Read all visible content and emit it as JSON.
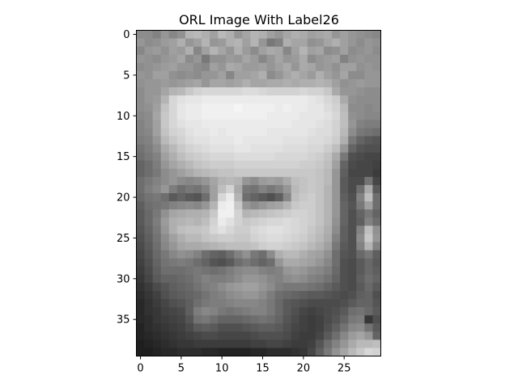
{
  "chart_data": {
    "type": "heatmap",
    "title": "ORL Image With Label26",
    "colormap": "gray",
    "grid": false,
    "x_axis": {
      "lim": [
        -0.5,
        29.5
      ],
      "ticks": [
        0,
        5,
        10,
        15,
        20,
        25
      ],
      "tick_labels": [
        "0",
        "5",
        "10",
        "15",
        "20",
        "25"
      ]
    },
    "y_axis": {
      "lim": [
        39.5,
        -0.5
      ],
      "inverted": true,
      "ticks": [
        0,
        5,
        10,
        15,
        20,
        25,
        30,
        35
      ],
      "tick_labels": [
        "0",
        "5",
        "10",
        "15",
        "20",
        "25",
        "30",
        "35"
      ]
    },
    "rows": 40,
    "cols": 30,
    "value_range": [
      0,
      255
    ],
    "pixels": [
      [
        140,
        140,
        130,
        150,
        135,
        145,
        180,
        185,
        175,
        160,
        185,
        175,
        150,
        165,
        180,
        175,
        160,
        150,
        165,
        175,
        170,
        160,
        165,
        170,
        150,
        160,
        150,
        145,
        140,
        135
      ],
      [
        150,
        140,
        145,
        155,
        160,
        175,
        150,
        160,
        180,
        150,
        155,
        175,
        180,
        160,
        180,
        150,
        120,
        130,
        175,
        165,
        165,
        145,
        150,
        165,
        175,
        160,
        150,
        140,
        150,
        145
      ],
      [
        135,
        150,
        155,
        145,
        160,
        155,
        175,
        135,
        160,
        180,
        165,
        150,
        175,
        155,
        140,
        160,
        170,
        165,
        135,
        160,
        180,
        160,
        165,
        140,
        145,
        160,
        140,
        145,
        150,
        140
      ],
      [
        150,
        145,
        140,
        150,
        155,
        165,
        140,
        150,
        120,
        145,
        145,
        155,
        150,
        165,
        155,
        135,
        150,
        165,
        150,
        155,
        170,
        140,
        150,
        155,
        160,
        130,
        145,
        150,
        145,
        145
      ],
      [
        140,
        145,
        150,
        155,
        160,
        150,
        150,
        140,
        135,
        160,
        150,
        170,
        165,
        155,
        155,
        160,
        150,
        160,
        170,
        150,
        170,
        165,
        150,
        155,
        145,
        160,
        160,
        145,
        150,
        145
      ],
      [
        150,
        145,
        160,
        160,
        145,
        140,
        145,
        140,
        150,
        150,
        160,
        135,
        160,
        160,
        165,
        175,
        140,
        150,
        165,
        175,
        165,
        155,
        175,
        160,
        150,
        165,
        140,
        140,
        150,
        150
      ],
      [
        145,
        150,
        150,
        155,
        150,
        155,
        160,
        165,
        150,
        165,
        165,
        160,
        165,
        175,
        165,
        165,
        170,
        170,
        175,
        170,
        175,
        175,
        180,
        175,
        160,
        145,
        150,
        155,
        150,
        150
      ],
      [
        140,
        150,
        150,
        165,
        180,
        185,
        200,
        210,
        215,
        215,
        215,
        215,
        215,
        220,
        220,
        215,
        210,
        210,
        210,
        210,
        215,
        210,
        210,
        200,
        170,
        150,
        150,
        145,
        140,
        140
      ],
      [
        140,
        150,
        155,
        180,
        215,
        225,
        230,
        230,
        235,
        235,
        235,
        235,
        235,
        235,
        235,
        235,
        235,
        235,
        235,
        235,
        235,
        230,
        225,
        215,
        205,
        170,
        145,
        140,
        140,
        140
      ],
      [
        140,
        145,
        160,
        195,
        215,
        230,
        235,
        235,
        240,
        240,
        240,
        240,
        245,
        240,
        240,
        240,
        240,
        235,
        240,
        235,
        235,
        230,
        230,
        220,
        210,
        185,
        140,
        140,
        135,
        140
      ],
      [
        135,
        140,
        165,
        200,
        215,
        230,
        235,
        235,
        240,
        240,
        240,
        240,
        240,
        240,
        240,
        240,
        235,
        235,
        235,
        235,
        230,
        230,
        230,
        225,
        215,
        190,
        145,
        140,
        135,
        135
      ],
      [
        130,
        140,
        160,
        200,
        215,
        225,
        230,
        230,
        235,
        235,
        235,
        235,
        235,
        235,
        235,
        235,
        235,
        235,
        235,
        230,
        230,
        230,
        225,
        220,
        210,
        190,
        150,
        130,
        125,
        125
      ],
      [
        130,
        135,
        160,
        195,
        210,
        215,
        225,
        230,
        230,
        235,
        230,
        235,
        235,
        235,
        235,
        235,
        230,
        230,
        230,
        230,
        230,
        225,
        220,
        220,
        210,
        185,
        140,
        120,
        115,
        110
      ],
      [
        125,
        130,
        150,
        185,
        200,
        210,
        220,
        225,
        225,
        230,
        230,
        230,
        235,
        230,
        230,
        230,
        230,
        230,
        225,
        225,
        225,
        220,
        220,
        215,
        205,
        175,
        120,
        100,
        90,
        85
      ],
      [
        115,
        125,
        140,
        170,
        185,
        200,
        210,
        215,
        220,
        225,
        225,
        225,
        230,
        230,
        225,
        225,
        225,
        225,
        220,
        220,
        220,
        215,
        215,
        205,
        190,
        150,
        100,
        85,
        80,
        80
      ],
      [
        110,
        120,
        130,
        160,
        175,
        190,
        200,
        205,
        210,
        215,
        215,
        215,
        220,
        220,
        220,
        220,
        220,
        215,
        215,
        215,
        215,
        210,
        205,
        195,
        170,
        120,
        80,
        75,
        70,
        70
      ],
      [
        100,
        110,
        125,
        150,
        165,
        175,
        185,
        195,
        200,
        205,
        205,
        205,
        210,
        210,
        210,
        210,
        210,
        210,
        210,
        210,
        205,
        205,
        200,
        190,
        160,
        100,
        75,
        70,
        70,
        65
      ],
      [
        100,
        110,
        120,
        140,
        150,
        160,
        170,
        180,
        185,
        190,
        195,
        195,
        200,
        200,
        200,
        200,
        200,
        200,
        200,
        200,
        200,
        200,
        195,
        185,
        150,
        95,
        70,
        70,
        70,
        60
      ],
      [
        110,
        120,
        130,
        140,
        150,
        140,
        135,
        140,
        150,
        165,
        180,
        185,
        180,
        150,
        140,
        155,
        160,
        155,
        170,
        190,
        195,
        200,
        195,
        185,
        150,
        90,
        75,
        75,
        115,
        70
      ],
      [
        110,
        125,
        135,
        150,
        125,
        110,
        120,
        115,
        130,
        160,
        190,
        210,
        170,
        120,
        115,
        130,
        120,
        130,
        150,
        185,
        195,
        200,
        195,
        180,
        150,
        90,
        75,
        110,
        170,
        90
      ],
      [
        105,
        115,
        120,
        110,
        90,
        100,
        90,
        85,
        110,
        160,
        215,
        235,
        180,
        110,
        100,
        90,
        80,
        95,
        135,
        190,
        200,
        205,
        195,
        180,
        150,
        95,
        80,
        130,
        190,
        110
      ],
      [
        95,
        110,
        115,
        120,
        130,
        135,
        140,
        135,
        150,
        180,
        235,
        240,
        200,
        150,
        140,
        150,
        160,
        165,
        180,
        200,
        205,
        205,
        195,
        180,
        150,
        100,
        85,
        120,
        160,
        110
      ],
      [
        90,
        105,
        120,
        145,
        165,
        170,
        175,
        175,
        180,
        200,
        240,
        240,
        210,
        180,
        185,
        190,
        195,
        200,
        205,
        210,
        210,
        205,
        195,
        180,
        150,
        100,
        80,
        100,
        120,
        100
      ],
      [
        90,
        105,
        125,
        155,
        175,
        180,
        185,
        180,
        190,
        210,
        235,
        225,
        210,
        200,
        205,
        210,
        215,
        215,
        220,
        215,
        210,
        205,
        195,
        180,
        145,
        100,
        80,
        95,
        130,
        110
      ],
      [
        85,
        100,
        120,
        150,
        175,
        190,
        195,
        195,
        200,
        215,
        225,
        215,
        205,
        205,
        215,
        220,
        225,
        225,
        220,
        215,
        210,
        200,
        190,
        175,
        140,
        95,
        80,
        130,
        190,
        145
      ],
      [
        80,
        95,
        115,
        140,
        160,
        175,
        185,
        185,
        195,
        200,
        205,
        205,
        200,
        200,
        210,
        215,
        220,
        220,
        215,
        210,
        205,
        195,
        185,
        170,
        130,
        95,
        80,
        140,
        200,
        150
      ],
      [
        75,
        90,
        110,
        135,
        150,
        165,
        170,
        170,
        175,
        180,
        185,
        190,
        190,
        190,
        195,
        205,
        210,
        210,
        205,
        200,
        195,
        185,
        175,
        160,
        120,
        90,
        80,
        130,
        180,
        130
      ],
      [
        70,
        85,
        105,
        120,
        135,
        145,
        140,
        130,
        110,
        100,
        95,
        110,
        130,
        145,
        120,
        110,
        140,
        175,
        185,
        185,
        175,
        165,
        160,
        145,
        110,
        85,
        80,
        105,
        120,
        95
      ],
      [
        65,
        80,
        100,
        115,
        120,
        125,
        120,
        110,
        100,
        85,
        80,
        90,
        110,
        120,
        110,
        100,
        110,
        150,
        170,
        170,
        165,
        160,
        150,
        135,
        110,
        80,
        75,
        90,
        105,
        90
      ],
      [
        60,
        75,
        95,
        110,
        110,
        110,
        115,
        120,
        115,
        110,
        115,
        125,
        135,
        140,
        140,
        130,
        125,
        130,
        150,
        155,
        150,
        140,
        135,
        125,
        105,
        80,
        75,
        90,
        105,
        95
      ],
      [
        55,
        70,
        90,
        100,
        100,
        105,
        110,
        120,
        130,
        125,
        125,
        130,
        140,
        150,
        150,
        145,
        135,
        130,
        140,
        145,
        140,
        130,
        125,
        115,
        100,
        80,
        75,
        95,
        110,
        100
      ],
      [
        50,
        60,
        75,
        85,
        95,
        100,
        105,
        115,
        125,
        130,
        140,
        150,
        155,
        160,
        160,
        150,
        140,
        125,
        120,
        120,
        120,
        115,
        110,
        100,
        90,
        80,
        75,
        90,
        105,
        90
      ],
      [
        45,
        55,
        65,
        80,
        90,
        95,
        100,
        105,
        115,
        125,
        130,
        140,
        145,
        150,
        150,
        140,
        125,
        110,
        105,
        100,
        95,
        90,
        90,
        85,
        80,
        75,
        80,
        95,
        100,
        80
      ],
      [
        40,
        50,
        60,
        70,
        80,
        85,
        95,
        110,
        120,
        125,
        125,
        130,
        135,
        135,
        135,
        130,
        120,
        105,
        90,
        85,
        80,
        75,
        75,
        75,
        75,
        80,
        90,
        100,
        100,
        85
      ],
      [
        40,
        50,
        55,
        65,
        70,
        75,
        95,
        125,
        135,
        130,
        120,
        115,
        120,
        125,
        130,
        130,
        120,
        105,
        90,
        80,
        70,
        65,
        70,
        75,
        80,
        90,
        110,
        115,
        105,
        90
      ],
      [
        40,
        45,
        55,
        60,
        65,
        70,
        85,
        115,
        120,
        110,
        100,
        100,
        100,
        105,
        110,
        115,
        110,
        100,
        85,
        75,
        65,
        60,
        65,
        75,
        85,
        100,
        120,
        125,
        55,
        80
      ],
      [
        35,
        45,
        50,
        55,
        60,
        65,
        75,
        90,
        95,
        90,
        80,
        80,
        80,
        85,
        90,
        95,
        95,
        90,
        80,
        70,
        65,
        60,
        65,
        80,
        95,
        115,
        135,
        140,
        115,
        90
      ],
      [
        35,
        40,
        45,
        50,
        55,
        60,
        65,
        70,
        75,
        75,
        70,
        70,
        70,
        70,
        75,
        80,
        80,
        80,
        75,
        65,
        60,
        60,
        70,
        90,
        110,
        135,
        155,
        165,
        150,
        100
      ],
      [
        30,
        35,
        40,
        45,
        50,
        55,
        55,
        60,
        60,
        60,
        60,
        60,
        60,
        60,
        65,
        65,
        70,
        70,
        65,
        60,
        60,
        65,
        85,
        110,
        130,
        150,
        170,
        185,
        185,
        190
      ],
      [
        30,
        30,
        35,
        40,
        40,
        45,
        45,
        45,
        40,
        40,
        35,
        35,
        35,
        35,
        40,
        40,
        45,
        45,
        45,
        50,
        55,
        70,
        95,
        120,
        145,
        165,
        185,
        200,
        215,
        210
      ]
    ]
  }
}
